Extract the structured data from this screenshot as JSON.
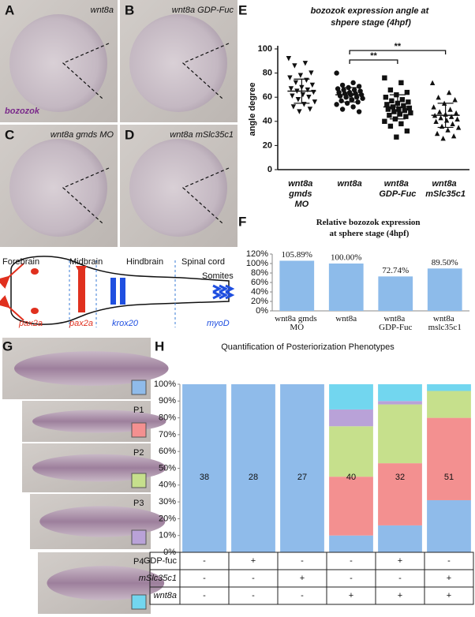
{
  "panels": [
    {
      "letter": "A",
      "label": "wnt8a",
      "stain": "bozozok"
    },
    {
      "letter": "B",
      "label": "wnt8a GDP-Fuc"
    },
    {
      "letter": "C",
      "label": "wnt8a gmds MO"
    },
    {
      "letter": "D",
      "label": "wnt8a mSlc35c1"
    }
  ],
  "diagram": {
    "regions": [
      "Forebrain",
      "Midbrain",
      "Hindbrain",
      "Spinal cord",
      "Somites"
    ],
    "markers": [
      "pax2a",
      "pax2a",
      "krox20",
      "myoD"
    ]
  },
  "panel_g": {
    "letter": "G",
    "stages": [
      "P1",
      "P2",
      "P3",
      "P4"
    ]
  },
  "chart_data": [
    {
      "type": "scatter",
      "panel": "E",
      "title": "bozozok expression angle at shpere stage (4hpf)",
      "y_label": "angle degree",
      "categories": [
        "wnt8a gmds MO",
        "wnt8a",
        "wnt8a GDP-Fuc",
        "wnt8a mSlc35c1"
      ],
      "markers": [
        "triangle-down",
        "circle",
        "square",
        "triangle-up"
      ],
      "color": "#111111",
      "groups": [
        {
          "values": [
            92,
            88,
            86,
            80,
            78,
            76,
            74,
            72,
            70,
            68,
            67,
            66,
            65,
            64,
            62,
            61,
            60,
            58,
            56,
            54,
            52,
            50,
            48
          ],
          "mean": 65,
          "sd": 10
        },
        {
          "values": [
            80,
            72,
            70,
            69,
            68,
            67,
            66,
            66,
            65,
            64,
            64,
            63,
            63,
            62,
            62,
            61,
            60,
            60,
            59,
            58,
            57,
            56,
            55,
            54,
            52,
            50,
            48
          ],
          "mean": 62,
          "sd": 6
        },
        {
          "values": [
            76,
            72,
            66,
            64,
            62,
            60,
            58,
            57,
            56,
            55,
            54,
            53,
            52,
            51,
            50,
            50,
            49,
            48,
            47,
            46,
            45,
            44,
            42,
            40,
            38,
            36,
            32,
            27
          ],
          "mean": 52,
          "sd": 10
        },
        {
          "values": [
            72,
            64,
            60,
            58,
            55,
            52,
            50,
            48,
            47,
            46,
            45,
            44,
            43,
            42,
            41,
            40,
            38,
            36,
            35,
            33,
            30,
            28,
            26
          ],
          "mean": 45,
          "sd": 10
        }
      ],
      "significance": [
        {
          "from": 1,
          "to": 2,
          "label": "**"
        },
        {
          "from": 1,
          "to": 3,
          "label": "**"
        }
      ],
      "ylim": [
        0,
        100
      ],
      "yticks": [
        0,
        20,
        40,
        60,
        80,
        100
      ]
    },
    {
      "type": "bar",
      "panel": "F",
      "title": "Relative bozozok expression at sphere stage (4hpf)",
      "categories": [
        "wnt8a gmds MO",
        "wnt8a",
        "wnt8a GDP-Fuc",
        "wnt8a mslc35c1"
      ],
      "values": [
        105.89,
        100,
        72.74,
        89.5
      ],
      "value_labels": [
        "105.89%",
        "100.00%",
        "72.74%",
        "89.50%"
      ],
      "color": "#8dbbea",
      "ylim": [
        0,
        120
      ],
      "yticks": [
        {
          "value": 0,
          "label": "0%"
        },
        {
          "value": 20,
          "label": "20%"
        },
        {
          "value": 40,
          "label": "40%"
        },
        {
          "value": 60,
          "label": "60%"
        },
        {
          "value": 80,
          "label": "80%"
        },
        {
          "value": 100,
          "label": "100%"
        },
        {
          "value": 120,
          "label": "120%"
        }
      ]
    },
    {
      "type": "stacked_bar",
      "panel": "H",
      "title": "Quantification of Posteriorization Phenotypes",
      "categories": [
        null,
        null,
        null,
        null,
        null,
        null
      ],
      "bar_labels": [
        38,
        28,
        27,
        40,
        32,
        51
      ],
      "series": [
        {
          "color": "#8fbbea",
          "values": [
            100,
            100,
            100,
            10,
            16,
            31
          ]
        },
        {
          "color": "#f39090",
          "values": [
            0,
            0,
            0,
            35,
            37,
            49
          ]
        },
        {
          "color": "#c6e08c",
          "values": [
            0,
            0,
            0,
            30,
            35,
            16
          ]
        },
        {
          "color": "#b9a2d8",
          "values": [
            0,
            0,
            0,
            10,
            2,
            0
          ]
        },
        {
          "color": "#72d6ef",
          "values": [
            0,
            0,
            0,
            15,
            10,
            4
          ]
        }
      ],
      "ylim": [
        0,
        100
      ],
      "yticks": [
        {
          "value": 0,
          "label": "0%"
        },
        {
          "value": 10,
          "label": "10%"
        },
        {
          "value": 20,
          "label": "20%"
        },
        {
          "value": 30,
          "label": "30%"
        },
        {
          "value": 40,
          "label": "40%"
        },
        {
          "value": 50,
          "label": "50%"
        },
        {
          "value": 60,
          "label": "60%"
        },
        {
          "value": 70,
          "label": "70%"
        },
        {
          "value": 80,
          "label": "80%"
        },
        {
          "value": 90,
          "label": "90%"
        },
        {
          "value": 100,
          "label": "100%"
        }
      ]
    }
  ],
  "table": {
    "rows": [
      {
        "label": "GDP-fuc",
        "cells": [
          "-",
          "+",
          "-",
          "-",
          "+",
          "-"
        ]
      },
      {
        "label": "mSlc35c1",
        "cells": [
          "-",
          "-",
          "+",
          "-",
          "-",
          "+"
        ]
      },
      {
        "label": "wnt8a",
        "cells": [
          "-",
          "-",
          "-",
          "+",
          "+",
          "+"
        ]
      }
    ]
  }
}
